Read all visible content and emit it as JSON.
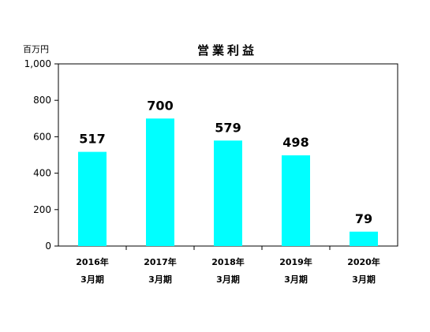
{
  "chart_data": {
    "type": "bar",
    "title": "営業利益",
    "unit_label": "百万円",
    "categories": [
      {
        "year": "2016年",
        "period": "3月期"
      },
      {
        "year": "2017年",
        "period": "3月期"
      },
      {
        "year": "2018年",
        "period": "3月期"
      },
      {
        "year": "2019年",
        "period": "3月期"
      },
      {
        "year": "2020年",
        "period": "3月期"
      }
    ],
    "values": [
      517,
      700,
      579,
      498,
      79
    ],
    "data_labels": [
      "517",
      "700",
      "579",
      "498",
      "79"
    ],
    "ylim": [
      0,
      1000
    ],
    "yticks": [
      0,
      200,
      400,
      600,
      800,
      1000
    ],
    "ytick_labels": [
      "0",
      "200",
      "400",
      "600",
      "800",
      "1,000"
    ],
    "bar_color": "#00FFFF",
    "grid": false,
    "legend": "none"
  }
}
